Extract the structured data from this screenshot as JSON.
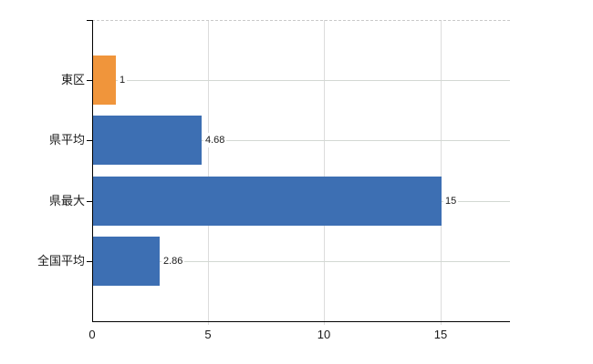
{
  "chart_data": {
    "type": "bar",
    "orientation": "horizontal",
    "title": "",
    "xlabel": "",
    "ylabel": "",
    "categories": [
      "東区",
      "県平均",
      "県最大",
      "全国平均"
    ],
    "values": [
      1,
      4.68,
      15,
      2.86
    ],
    "value_labels": [
      "1",
      "4.68",
      "15",
      "2.86"
    ],
    "bar_colors": [
      "#F0953B",
      "#3D6FB3",
      "#3D6FB3",
      "#3D6FB3"
    ],
    "xlim": [
      0,
      18
    ],
    "x_ticks": [
      0,
      5,
      10,
      15
    ],
    "x_tick_labels": [
      "0",
      "5",
      "10",
      "15"
    ],
    "grid": true,
    "legend": false,
    "colors": {
      "bar_blue": "#3D6FB3",
      "bar_orange": "#F0953B",
      "axis": "#000000",
      "gridline_horizontal": "#D3D8D3",
      "gridline_vertical": "#DCDCDC",
      "plot_top_border": "#C9C9C9",
      "text": "#1A1A1A",
      "background": "#FFFFFF"
    }
  }
}
